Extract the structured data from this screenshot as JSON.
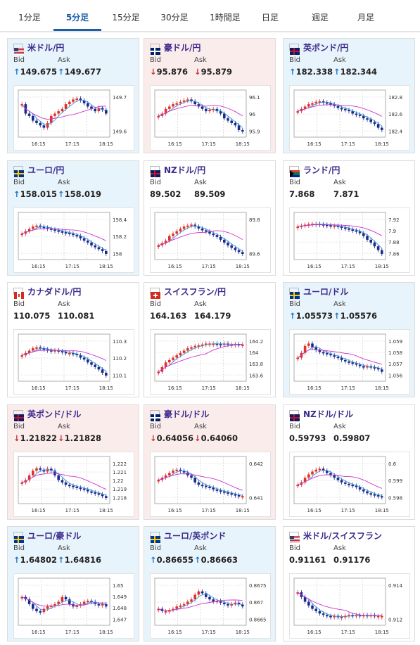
{
  "tabs": [
    "1分足",
    "5分足",
    "15分足",
    "30分足",
    "1時間足",
    "日足",
    "週足",
    "月足"
  ],
  "active_tab": 1,
  "colors": {
    "up_bg": "#e8f4fb",
    "down_bg": "#fbecec",
    "up_candle": "#e0302a",
    "down_candle": "#1a2a8c",
    "ma_short": "#3a9ad9",
    "ma_long": "#cc33cc"
  },
  "cards": [
    {
      "pair": "米ドル/円",
      "bid_label": "Bid",
      "ask_label": "Ask",
      "bid": "149.675",
      "ask": "149.677",
      "trend": "up",
      "flag": "us",
      "chart_data": {
        "type": "candlestick",
        "x_ticks": [
          "16:15",
          "17:15",
          "18:15"
        ],
        "y_ticks": [
          "149.7",
          "149.6"
        ],
        "close": [
          0.7,
          0.5,
          0.45,
          0.35,
          0.3,
          0.25,
          0.2,
          0.3,
          0.45,
          0.5,
          0.55,
          0.6,
          0.7,
          0.75,
          0.8,
          0.82,
          0.78,
          0.72,
          0.65,
          0.6,
          0.55,
          0.62,
          0.58,
          0.5
        ]
      }
    },
    {
      "pair": "豪ドル/円",
      "bid_label": "Bid",
      "ask_label": "Ask",
      "bid": "95.876",
      "ask": "95.879",
      "trend": "down",
      "flag": "au",
      "chart_data": {
        "type": "candlestick",
        "x_ticks": [
          "16:15",
          "17:15",
          "18:15"
        ],
        "y_ticks": [
          "96.1",
          "96",
          "95.9"
        ],
        "close": [
          0.45,
          0.5,
          0.6,
          0.65,
          0.7,
          0.72,
          0.75,
          0.78,
          0.8,
          0.76,
          0.7,
          0.65,
          0.6,
          0.55,
          0.58,
          0.6,
          0.55,
          0.5,
          0.4,
          0.35,
          0.3,
          0.25,
          0.15,
          0.12
        ]
      }
    },
    {
      "pair": "英ポンド/円",
      "bid_label": "Bid",
      "ask_label": "Ask",
      "bid": "182.338",
      "ask": "182.344",
      "trend": "up",
      "flag": "gb",
      "chart_data": {
        "type": "candlestick",
        "x_ticks": [
          "16:15",
          "17:15",
          "18:15"
        ],
        "y_ticks": [
          "182.8",
          "182.6",
          "182.4"
        ],
        "close": [
          0.55,
          0.6,
          0.65,
          0.7,
          0.72,
          0.75,
          0.76,
          0.74,
          0.72,
          0.7,
          0.66,
          0.62,
          0.6,
          0.58,
          0.55,
          0.5,
          0.48,
          0.45,
          0.4,
          0.38,
          0.32,
          0.28,
          0.2,
          0.15
        ]
      }
    },
    {
      "pair": "ユーロ/円",
      "bid_label": "Bid",
      "ask_label": "Ask",
      "bid": "158.015",
      "ask": "158.019",
      "trend": "up",
      "flag": "eu",
      "chart_data": {
        "type": "candlestick",
        "x_ticks": [
          "16:15",
          "17:15",
          "18:15"
        ],
        "y_ticks": [
          "158.4",
          "158.2",
          "158"
        ],
        "close": [
          0.55,
          0.6,
          0.65,
          0.7,
          0.72,
          0.7,
          0.68,
          0.66,
          0.64,
          0.62,
          0.6,
          0.58,
          0.57,
          0.55,
          0.52,
          0.5,
          0.45,
          0.4,
          0.36,
          0.3,
          0.26,
          0.22,
          0.18,
          0.12
        ]
      }
    },
    {
      "pair": "NZドル/円",
      "bid_label": "Bid",
      "ask_label": "Ask",
      "bid": "89.502",
      "ask": "89.509",
      "trend": "neutral",
      "flag": "nz",
      "chart_data": {
        "type": "candlestick",
        "x_ticks": [
          "16:15",
          "17:15",
          "18:15"
        ],
        "y_ticks": [
          "89.8",
          "89.6"
        ],
        "close": [
          0.3,
          0.35,
          0.4,
          0.5,
          0.55,
          0.6,
          0.65,
          0.7,
          0.72,
          0.74,
          0.7,
          0.66,
          0.62,
          0.6,
          0.55,
          0.52,
          0.48,
          0.42,
          0.36,
          0.3,
          0.25,
          0.2,
          0.16,
          0.12
        ]
      }
    },
    {
      "pair": "ランド/円",
      "bid_label": "Bid",
      "ask_label": "Ask",
      "bid": "7.868",
      "ask": "7.871",
      "trend": "neutral",
      "flag": "za",
      "chart_data": {
        "type": "candlestick",
        "x_ticks": [
          "16:15",
          "17:15",
          "18:15"
        ],
        "y_ticks": [
          "7.92",
          "7.9",
          "7.88",
          "7.86"
        ],
        "close": [
          0.7,
          0.72,
          0.74,
          0.75,
          0.76,
          0.76,
          0.75,
          0.74,
          0.73,
          0.72,
          0.72,
          0.7,
          0.68,
          0.66,
          0.64,
          0.62,
          0.6,
          0.56,
          0.5,
          0.42,
          0.36,
          0.28,
          0.2,
          0.12
        ]
      }
    },
    {
      "pair": "カナダドル/円",
      "bid_label": "Bid",
      "ask_label": "Ask",
      "bid": "110.075",
      "ask": "110.081",
      "trend": "neutral",
      "flag": "ca",
      "chart_data": {
        "type": "candlestick",
        "x_ticks": [
          "16:15",
          "17:15",
          "18:15"
        ],
        "y_ticks": [
          "110.3",
          "110.2",
          "110.1"
        ],
        "close": [
          0.55,
          0.6,
          0.65,
          0.7,
          0.72,
          0.7,
          0.68,
          0.66,
          0.65,
          0.66,
          0.64,
          0.62,
          0.6,
          0.6,
          0.58,
          0.55,
          0.5,
          0.46,
          0.4,
          0.35,
          0.3,
          0.25,
          0.18,
          0.12
        ]
      }
    },
    {
      "pair": "スイスフラン/円",
      "bid_label": "Bid",
      "ask_label": "Ask",
      "bid": "164.163",
      "ask": "164.179",
      "trend": "neutral",
      "flag": "ch",
      "chart_data": {
        "type": "candlestick",
        "x_ticks": [
          "16:15",
          "17:15",
          "18:15"
        ],
        "y_ticks": [
          "164.2",
          "164",
          "163.8",
          "163.6"
        ],
        "close": [
          0.2,
          0.3,
          0.4,
          0.45,
          0.5,
          0.55,
          0.6,
          0.65,
          0.7,
          0.72,
          0.75,
          0.76,
          0.78,
          0.8,
          0.8,
          0.8,
          0.79,
          0.78,
          0.8,
          0.78,
          0.78,
          0.79,
          0.78,
          0.78
        ]
      }
    },
    {
      "pair": "ユーロ/ドル",
      "bid_label": "Bid",
      "ask_label": "Ask",
      "bid": "1.05573",
      "ask": "1.05576",
      "trend": "up",
      "flag": "eu-us",
      "chart_data": {
        "type": "candlestick",
        "x_ticks": [
          "16:15",
          "17:15",
          "18:15"
        ],
        "y_ticks": [
          "1.059",
          "1.058",
          "1.057",
          "1.056"
        ],
        "close": [
          0.5,
          0.6,
          0.75,
          0.8,
          0.72,
          0.66,
          0.62,
          0.6,
          0.58,
          0.55,
          0.52,
          0.5,
          0.45,
          0.42,
          0.4,
          0.38,
          0.35,
          0.32,
          0.3,
          0.32,
          0.3,
          0.28,
          0.25,
          0.2
        ]
      }
    },
    {
      "pair": "英ポンド/ドル",
      "bid_label": "Bid",
      "ask_label": "Ask",
      "bid": "1.21822",
      "ask": "1.21828",
      "trend": "down",
      "flag": "gb-us",
      "chart_data": {
        "type": "candlestick",
        "x_ticks": [
          "16:15",
          "17:15",
          "18:15"
        ],
        "y_ticks": [
          "1.222",
          "1.221",
          "1.22",
          "1.219",
          "1.218"
        ],
        "close": [
          0.45,
          0.5,
          0.6,
          0.7,
          0.75,
          0.72,
          0.68,
          0.74,
          0.7,
          0.6,
          0.5,
          0.45,
          0.4,
          0.38,
          0.36,
          0.34,
          0.32,
          0.3,
          0.26,
          0.24,
          0.22,
          0.2,
          0.16,
          0.12
        ]
      }
    },
    {
      "pair": "豪ドル/ドル",
      "bid_label": "Bid",
      "ask_label": "Ask",
      "bid": "0.64056",
      "ask": "0.64060",
      "trend": "down",
      "flag": "au-us",
      "chart_data": {
        "type": "candlestick",
        "x_ticks": [
          "16:15",
          "17:15",
          "18:15"
        ],
        "y_ticks": [
          "0.642",
          "0.641"
        ],
        "close": [
          0.5,
          0.55,
          0.6,
          0.65,
          0.7,
          0.72,
          0.7,
          0.66,
          0.6,
          0.55,
          0.45,
          0.4,
          0.38,
          0.36,
          0.34,
          0.3,
          0.28,
          0.26,
          0.24,
          0.22,
          0.2,
          0.18,
          0.16,
          0.16
        ]
      }
    },
    {
      "pair": "NZドル/ドル",
      "bid_label": "Bid",
      "ask_label": "Ask",
      "bid": "0.59793",
      "ask": "0.59807",
      "trend": "neutral",
      "flag": "nz-us",
      "chart_data": {
        "type": "candlestick",
        "x_ticks": [
          "16:15",
          "17:15",
          "18:15"
        ],
        "y_ticks": [
          "0.6",
          "0.599",
          "0.598"
        ],
        "close": [
          0.4,
          0.45,
          0.55,
          0.62,
          0.68,
          0.72,
          0.74,
          0.7,
          0.65,
          0.6,
          0.55,
          0.5,
          0.45,
          0.42,
          0.4,
          0.38,
          0.35,
          0.3,
          0.26,
          0.22,
          0.2,
          0.18,
          0.16,
          0.15
        ]
      }
    },
    {
      "pair": "ユーロ/豪ドル",
      "bid_label": "Bid",
      "ask_label": "Ask",
      "bid": "1.64802",
      "ask": "1.64816",
      "trend": "up",
      "flag": "eu-au",
      "chart_data": {
        "type": "candlestick",
        "x_ticks": [
          "16:15",
          "17:15",
          "18:15"
        ],
        "y_ticks": [
          "1.65",
          "1.649",
          "1.648",
          "1.647"
        ],
        "close": [
          0.6,
          0.55,
          0.45,
          0.35,
          0.3,
          0.28,
          0.35,
          0.4,
          0.42,
          0.45,
          0.5,
          0.6,
          0.55,
          0.45,
          0.4,
          0.42,
          0.45,
          0.5,
          0.52,
          0.5,
          0.45,
          0.42,
          0.45,
          0.4
        ]
      }
    },
    {
      "pair": "ユーロ/英ポンド",
      "bid_label": "Bid",
      "ask_label": "Ask",
      "bid": "0.86655",
      "ask": "0.86663",
      "trend": "up",
      "flag": "eu-gb",
      "chart_data": {
        "type": "candlestick",
        "x_ticks": [
          "16:15",
          "17:15",
          "18:15"
        ],
        "y_ticks": [
          "0.8675",
          "0.867",
          "0.8665"
        ],
        "close": [
          0.35,
          0.3,
          0.3,
          0.32,
          0.35,
          0.4,
          0.42,
          0.45,
          0.5,
          0.55,
          0.65,
          0.72,
          0.68,
          0.6,
          0.55,
          0.5,
          0.52,
          0.48,
          0.45,
          0.42,
          0.45,
          0.48,
          0.44,
          0.4
        ]
      }
    },
    {
      "pair": "米ドル/スイスフラン",
      "bid_label": "Bid",
      "ask_label": "Ask",
      "bid": "0.91161",
      "ask": "0.91176",
      "trend": "neutral",
      "flag": "us-ch",
      "chart_data": {
        "type": "candlestick",
        "x_ticks": [
          "16:15",
          "17:15",
          "18:15"
        ],
        "y_ticks": [
          "0.914",
          "0.912"
        ],
        "close": [
          0.7,
          0.6,
          0.5,
          0.42,
          0.35,
          0.3,
          0.25,
          0.22,
          0.2,
          0.18,
          0.2,
          0.18,
          0.18,
          0.2,
          0.22,
          0.2,
          0.22,
          0.2,
          0.22,
          0.2,
          0.22,
          0.2,
          0.2,
          0.2
        ]
      }
    }
  ]
}
